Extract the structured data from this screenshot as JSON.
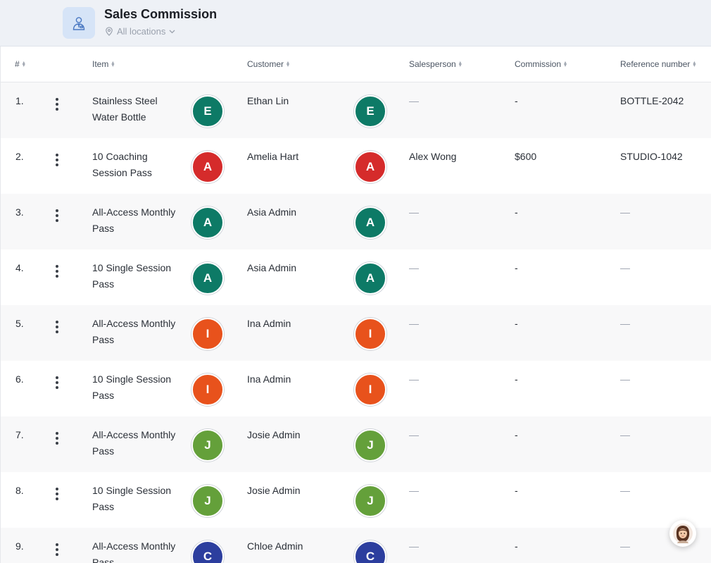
{
  "header": {
    "title": "Sales Commission",
    "location": "All locations",
    "app_icon": "salesperson-icon",
    "location_icon": "map-pin-icon",
    "chevron_icon": "chevron-down-icon"
  },
  "columns": {
    "num": "#",
    "item": "Item",
    "customer": "Customer",
    "salesperson": "Salesperson",
    "commission": "Commission",
    "reference": "Reference number"
  },
  "rows": [
    {
      "num": "1.",
      "item": "Stainless Steel Water Bottle",
      "item_avatar": "E",
      "customer": "Ethan Lin",
      "customer_avatar": "E",
      "avatar_color": "#0d7a66",
      "salesperson": "—",
      "commission": "-",
      "reference": "BOTTLE-2042"
    },
    {
      "num": "2.",
      "item": "10 Coaching Session Pass",
      "item_avatar": "A",
      "customer": "Amelia Hart",
      "customer_avatar": "A",
      "avatar_color": "#d52b2b",
      "salesperson": "Alex Wong",
      "commission": "$600",
      "reference": "STUDIO-1042"
    },
    {
      "num": "3.",
      "item": "All-Access Monthly Pass",
      "item_avatar": "A",
      "customer": "Asia Admin",
      "customer_avatar": "A",
      "avatar_color": "#0d7a66",
      "salesperson": "—",
      "commission": "-",
      "reference": "—"
    },
    {
      "num": "4.",
      "item": "10 Single Session Pass",
      "item_avatar": "A",
      "customer": "Asia Admin",
      "customer_avatar": "A",
      "avatar_color": "#0d7a66",
      "salesperson": "—",
      "commission": "-",
      "reference": "—"
    },
    {
      "num": "5.",
      "item": "All-Access Monthly Pass",
      "item_avatar": "I",
      "customer": "Ina Admin",
      "customer_avatar": "I",
      "avatar_color": "#e8521c",
      "salesperson": "—",
      "commission": "-",
      "reference": "—"
    },
    {
      "num": "6.",
      "item": "10 Single Session Pass",
      "item_avatar": "I",
      "customer": "Ina Admin",
      "customer_avatar": "I",
      "avatar_color": "#e8521c",
      "salesperson": "—",
      "commission": "-",
      "reference": "—"
    },
    {
      "num": "7.",
      "item": "All-Access Monthly Pass",
      "item_avatar": "J",
      "customer": "Josie Admin",
      "customer_avatar": "J",
      "avatar_color": "#64a03a",
      "salesperson": "—",
      "commission": "-",
      "reference": "—"
    },
    {
      "num": "8.",
      "item": "10 Single Session Pass",
      "item_avatar": "J",
      "customer": "Josie Admin",
      "customer_avatar": "J",
      "avatar_color": "#64a03a",
      "salesperson": "—",
      "commission": "-",
      "reference": "—"
    },
    {
      "num": "9.",
      "item": "All-Access Monthly Pass",
      "item_avatar": "C",
      "customer": "Chloe Admin",
      "customer_avatar": "C",
      "avatar_color": "#2c3e9e",
      "salesperson": "—",
      "commission": "-",
      "reference": "—"
    }
  ],
  "chat_widget": {
    "icon": "assistant-avatar-icon"
  }
}
